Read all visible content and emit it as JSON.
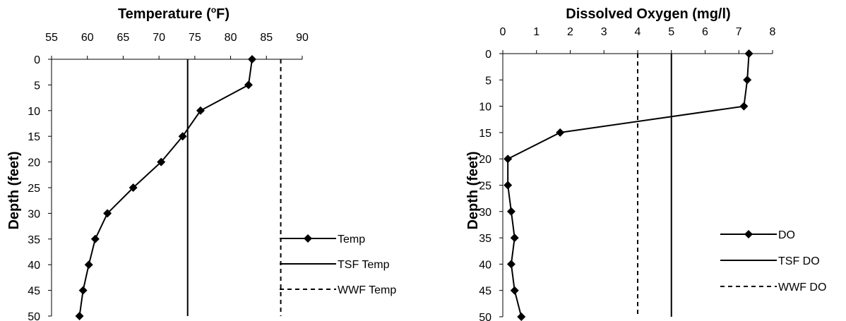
{
  "chart_data": [
    {
      "type": "line",
      "title": "Temperature (°F)",
      "title_main": "Temperature (",
      "title_sup": "o",
      "title_end": "F)",
      "xaxis_position": "top",
      "ylabel": "Depth (feet)",
      "xlim": [
        55,
        90
      ],
      "ylim": [
        0,
        50
      ],
      "y_inverted": true,
      "xticks": [
        "55",
        "60",
        "65",
        "70",
        "75",
        "80",
        "85",
        "90"
      ],
      "yticks": [
        "0",
        "5",
        "10",
        "15",
        "20",
        "25",
        "30",
        "35",
        "40",
        "45",
        "50"
      ],
      "series": [
        {
          "name": "Temp",
          "style": "solid-diamond-markers",
          "points": [
            [
              83,
              0
            ],
            [
              82.5,
              5
            ],
            [
              75.8,
              10
            ],
            [
              73.3,
              15
            ],
            [
              70.3,
              20
            ],
            [
              66.4,
              25
            ],
            [
              62.8,
              30
            ],
            [
              61.1,
              35
            ],
            [
              60.2,
              40
            ],
            [
              59.4,
              45
            ],
            [
              58.9,
              50
            ]
          ]
        },
        {
          "name": "TSF Temp",
          "style": "solid",
          "points": [
            [
              74,
              0
            ],
            [
              74,
              50
            ]
          ]
        },
        {
          "name": "WWF Temp",
          "style": "dashed",
          "points": [
            [
              87,
              0
            ],
            [
              87,
              50
            ]
          ]
        }
      ],
      "legend_position": "right"
    },
    {
      "type": "line",
      "title": "Dissolved Oxygen (mg/l)",
      "xaxis_position": "top",
      "ylabel": "Depth (feet)",
      "xlim": [
        0,
        8
      ],
      "ylim": [
        0,
        50
      ],
      "y_inverted": true,
      "xticks": [
        "0",
        "1",
        "2",
        "3",
        "4",
        "5",
        "6",
        "7",
        "8"
      ],
      "yticks": [
        "0",
        "5",
        "10",
        "15",
        "20",
        "25",
        "30",
        "35",
        "40",
        "45",
        "50"
      ],
      "series": [
        {
          "name": "DO",
          "style": "solid-diamond-markers",
          "points": [
            [
              7.3,
              0
            ],
            [
              7.25,
              5
            ],
            [
              7.15,
              10
            ],
            [
              1.7,
              15
            ],
            [
              0.15,
              20
            ],
            [
              0.15,
              25
            ],
            [
              0.25,
              30
            ],
            [
              0.35,
              35
            ],
            [
              0.25,
              40
            ],
            [
              0.35,
              45
            ],
            [
              0.55,
              50
            ]
          ]
        },
        {
          "name": "TSF DO",
          "style": "solid",
          "points": [
            [
              5,
              0
            ],
            [
              5,
              50
            ]
          ]
        },
        {
          "name": "WWF DO",
          "style": "dashed",
          "points": [
            [
              4,
              0
            ],
            [
              4,
              50
            ]
          ]
        }
      ],
      "legend_position": "right"
    }
  ]
}
